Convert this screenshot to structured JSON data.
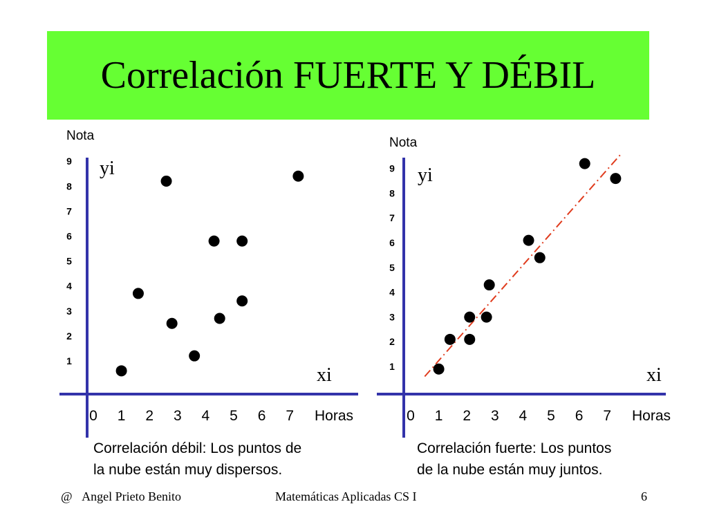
{
  "slide": {
    "title": "Correlación FUERTE Y DÉBIL",
    "footer": {
      "author_symbol": "@",
      "author": "Angel Prieto Benito",
      "course": "Matemáticas Aplicadas CS I",
      "page": "6"
    }
  },
  "colors": {
    "title_bg": "#66ff33",
    "axis": "#3333aa",
    "points": "#000000",
    "trend_line": "#e03c1e"
  },
  "chart_data": [
    {
      "type": "scatter",
      "ylabel": "Nota",
      "xlabel": "Horas",
      "y_var": "yi",
      "x_var": "xi",
      "x_ticks": [
        "0",
        "1",
        "2",
        "3",
        "4",
        "5",
        "6",
        "7"
      ],
      "y_ticks": [
        "1",
        "2",
        "3",
        "4",
        "5",
        "6",
        "7",
        "8",
        "9"
      ],
      "points": [
        {
          "x": 1.0,
          "y": 0.6
        },
        {
          "x": 1.6,
          "y": 3.7
        },
        {
          "x": 2.6,
          "y": 8.2
        },
        {
          "x": 2.8,
          "y": 2.5
        },
        {
          "x": 3.6,
          "y": 1.2
        },
        {
          "x": 4.3,
          "y": 5.8
        },
        {
          "x": 4.5,
          "y": 2.7
        },
        {
          "x": 5.3,
          "y": 5.8
        },
        {
          "x": 5.3,
          "y": 3.4
        },
        {
          "x": 7.3,
          "y": 8.4
        }
      ],
      "caption": [
        "Correlación débil: Los puntos de",
        "la nube están muy dispersos."
      ]
    },
    {
      "type": "scatter",
      "ylabel": "Nota",
      "xlabel": "Horas",
      "y_var": "yi",
      "x_var": "xi",
      "x_ticks": [
        "0",
        "1",
        "2",
        "3",
        "4",
        "5",
        "6",
        "7"
      ],
      "y_ticks": [
        "1",
        "2",
        "3",
        "4",
        "5",
        "6",
        "7",
        "8",
        "9"
      ],
      "points": [
        {
          "x": 1.0,
          "y": 0.9
        },
        {
          "x": 1.4,
          "y": 2.1
        },
        {
          "x": 2.1,
          "y": 2.1
        },
        {
          "x": 2.1,
          "y": 3.0
        },
        {
          "x": 2.7,
          "y": 3.0
        },
        {
          "x": 2.8,
          "y": 4.3
        },
        {
          "x": 4.2,
          "y": 6.1
        },
        {
          "x": 4.6,
          "y": 5.4
        },
        {
          "x": 6.2,
          "y": 9.2
        },
        {
          "x": 7.3,
          "y": 8.6
        }
      ],
      "trend_line": {
        "x1": 0.5,
        "y1": 0.6,
        "x2": 7.5,
        "y2": 9.6,
        "style": "dash-dot"
      },
      "caption": [
        "Correlación fuerte: Los puntos",
        "de la nube están muy juntos."
      ]
    }
  ]
}
